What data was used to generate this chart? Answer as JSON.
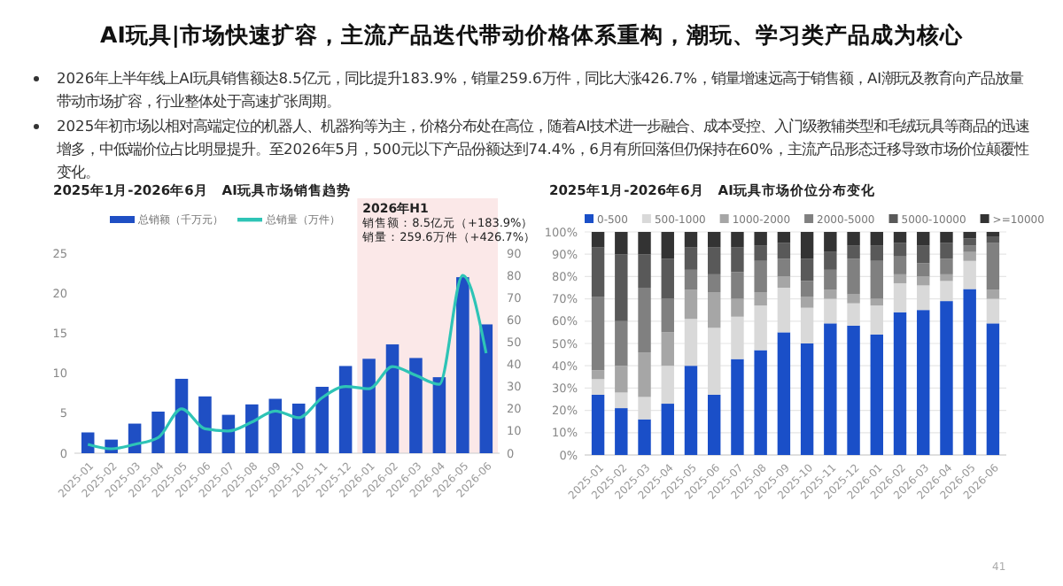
{
  "chart_data": [
    {
      "type": "bar",
      "title": "2025年1月-2026年6月　AI玩具市场销售趋势",
      "categories": [
        "2025-01",
        "2025-02",
        "2025-03",
        "2025-04",
        "2025-05",
        "2025-06",
        "2025-07",
        "2025-08",
        "2025-09",
        "2025-10",
        "2025-11",
        "2025-12",
        "2026-01",
        "2026-02",
        "2026-03",
        "2026-04",
        "2026-05",
        "2026-06"
      ],
      "series": [
        {
          "name": "总销额（千万元）",
          "type": "bar",
          "color": "#1f4fc4",
          "values": [
            2.6,
            1.7,
            3.7,
            5.2,
            9.3,
            7.1,
            4.8,
            6.1,
            6.8,
            6.2,
            8.3,
            10.9,
            11.8,
            13.6,
            11.9,
            9.5,
            22,
            16.1
          ]
        },
        {
          "name": "总销量（万件）",
          "type": "line",
          "axis": "y2",
          "color": "#2ec4b6",
          "values": [
            4,
            2,
            4,
            7,
            20,
            11,
            10,
            14,
            19,
            16,
            25,
            30,
            29,
            39,
            35,
            31,
            80,
            45
          ]
        }
      ],
      "ylim": [
        0,
        25
      ],
      "yticks": [
        0,
        5,
        10,
        15,
        20,
        25
      ],
      "y2lim": [
        0,
        90
      ],
      "y2ticks": [
        0,
        10,
        20,
        30,
        40,
        50,
        60,
        70,
        80,
        90
      ],
      "legend": "top",
      "bands": [
        {
          "axis": "x",
          "from": "2026-01",
          "to": "2026-06",
          "label": "2026年H1",
          "color": "#fbe8e8"
        }
      ],
      "annotations": [
        "AI玩具|市场快速扩容，主流产品迭代带动价格体系重构，潮玩、学习类产品成为核心",
        "2026年上半年线上AI玩具销售额达8.5亿元，同比提升183.9%，销量259.6万件，同比大涨426.7%，销量增速远高于销售额，AI潮玩及教育向产品放量带动市场扩容，行业整体处于高速扩张周期。",
        "2025年初市场以相对高端定位的机器人、机器狗等为主，价格分布处在高位，随着AI技术进一步融合、成本受控、入门级教辅类型和毛绒玩具等商品的迅速增多，中低端价位占比明显提升。至2026年5月，500元以下产品份额达到74.4%，6月有所回落但仍保持在60%，主流产品形态迁移导致市场价位颠覆性变化。",
        "销售额：8.5亿元（+183.9%）",
        "销量：259.6万件（+426.7%）"
      ]
    },
    {
      "type": "bar",
      "title": "2025年1月-2026年6月　AI玩具市场价位分布变化",
      "stacked": true,
      "categories": [
        "2025-01",
        "2025-02",
        "2025-03",
        "2025-04",
        "2025-05",
        "2025-06",
        "2025-07",
        "2025-08",
        "2025-09",
        "2025-10",
        "2025-11",
        "2025-12",
        "2026-01",
        "2026-02",
        "2026-03",
        "2026-04",
        "2026-05",
        "2026-06"
      ],
      "series": [
        {
          "name": "0-500",
          "color": "#1a4fc8",
          "values": [
            27,
            21,
            16,
            23,
            40,
            27,
            43,
            47,
            55,
            50,
            59,
            58,
            54,
            64,
            65,
            69,
            74.4,
            59
          ]
        },
        {
          "name": "500-1000",
          "color": "#d9d9d9",
          "values": [
            7,
            7,
            10,
            17,
            21,
            30,
            19,
            20,
            20,
            16,
            11,
            10,
            13,
            13,
            11,
            9,
            12.6,
            11
          ]
        },
        {
          "name": "1000-2000",
          "color": "#a6a6a6",
          "values": [
            4,
            12,
            20,
            15,
            13,
            16,
            8,
            6,
            5,
            5,
            4,
            4,
            3,
            4,
            4,
            3,
            4,
            4
          ]
        },
        {
          "name": "2000-5000",
          "color": "#808080",
          "values": [
            33,
            20,
            29,
            15,
            9,
            8,
            12,
            14,
            8,
            7,
            9,
            16,
            17,
            8,
            6,
            7,
            3,
            21
          ]
        },
        {
          "name": "5000-10000",
          "color": "#595959",
          "values": [
            22,
            30,
            15,
            18,
            10,
            12,
            11,
            7,
            7,
            10,
            8,
            6,
            7,
            6,
            8,
            7,
            3,
            3
          ]
        },
        {
          "name": ">=10000",
          "color": "#333333",
          "values": [
            7,
            10,
            10,
            12,
            7,
            7,
            7,
            6,
            5,
            12,
            9,
            6,
            6,
            5,
            6,
            5,
            3,
            2
          ]
        }
      ],
      "ylim": [
        0,
        100
      ],
      "yticks": [
        {
          "value": 0,
          "label": "0%"
        },
        {
          "value": 10,
          "label": "10%"
        },
        {
          "value": 20,
          "label": "20%"
        },
        {
          "value": 30,
          "label": "30%"
        },
        {
          "value": 40,
          "label": "40%"
        },
        {
          "value": 50,
          "label": "50%"
        },
        {
          "value": 60,
          "label": "60%"
        },
        {
          "value": 70,
          "label": "70%"
        },
        {
          "value": 80,
          "label": "80%"
        },
        {
          "value": 90,
          "label": "90%"
        },
        {
          "value": 100,
          "label": "100%"
        }
      ],
      "grid": "y",
      "legend": "top",
      "annotations": [
        "41"
      ]
    }
  ]
}
